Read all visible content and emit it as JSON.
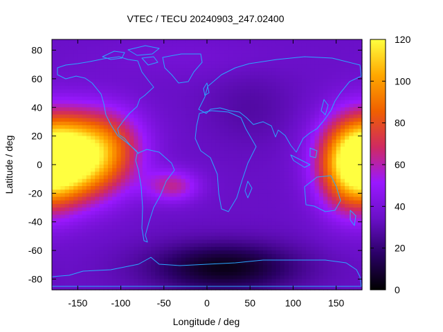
{
  "chart_data": {
    "type": "heatmap",
    "title": "VTEC / TECU 20240903_247.02400",
    "xlabel": "Longitude / deg",
    "ylabel": "Latitude / deg",
    "xlim": [
      -180,
      180
    ],
    "ylim": [
      -87.5,
      87.5
    ],
    "x_ticks": [
      -150,
      -100,
      -50,
      0,
      50,
      100,
      150
    ],
    "y_ticks": [
      -80,
      -60,
      -40,
      -20,
      0,
      20,
      40,
      60,
      80
    ],
    "colorbar": {
      "min": 0,
      "max": 120,
      "ticks": [
        0,
        20,
        40,
        60,
        80,
        100,
        120
      ]
    },
    "colormap": [
      "#000000",
      "#2a0066",
      "#6a10c8",
      "#9a18ff",
      "#d02a60",
      "#f06000",
      "#ffa800",
      "#ffff40"
    ],
    "coastline_color": "#2aa8ff",
    "background_level": 34,
    "features": [
      {
        "lon": -150,
        "lat": 5,
        "sx": 38,
        "sy": 20,
        "amp": 82
      },
      {
        "lon": 170,
        "lat": 0,
        "sx": 28,
        "sy": 22,
        "amp": 72
      },
      {
        "lon": -40,
        "lat": -15,
        "sx": 22,
        "sy": 8,
        "amp": 28
      },
      {
        "lon": -110,
        "lat": 15,
        "sx": 30,
        "sy": 18,
        "amp": 20
      },
      {
        "lon": 20,
        "lat": -72,
        "sx": 60,
        "sy": 12,
        "amp": -30
      },
      {
        "lon": 50,
        "lat": 40,
        "sx": 35,
        "sy": 18,
        "amp": -6
      },
      {
        "lon": -30,
        "lat": 75,
        "sx": 80,
        "sy": 10,
        "amp": 4
      }
    ]
  }
}
